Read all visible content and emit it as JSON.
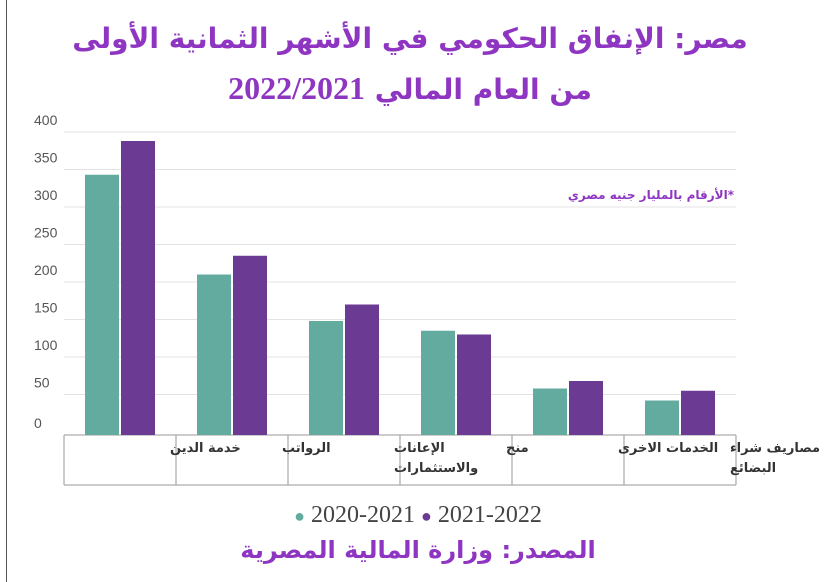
{
  "chart_data": {
    "type": "bar",
    "title_line1": "مصر: الإنفاق الحكومي في الأشهر الثمانية الأولى",
    "title_line2_text": "من العام المالي",
    "title_line2_year": "2022/2021",
    "note": "*الأرقام بالمليار جنيه مصري",
    "categories": [
      "خدمة الدين",
      "الرواتب",
      "الإعانات والاستثمارات",
      "منح",
      "الخدمات الاخرى",
      "مصاريف شراء البضائع"
    ],
    "category_lines": [
      [
        "خدمة الدين"
      ],
      [
        "الرواتب"
      ],
      [
        "الإعانات",
        "والاستثمارات"
      ],
      [
        "منح"
      ],
      [
        "الخدمات الاخرى"
      ],
      [
        "مصاريف شراء",
        "البضائع"
      ]
    ],
    "series": [
      {
        "name": "2020-2021",
        "color": "#64ab9f",
        "values": [
          343,
          210,
          148,
          135,
          58,
          42
        ]
      },
      {
        "name": "2021-2022",
        "color": "#6b3a93",
        "values": [
          388,
          235,
          170,
          130,
          68,
          55
        ]
      }
    ],
    "ylim": [
      0,
      400
    ],
    "yticks": [
      0,
      50,
      100,
      150,
      200,
      250,
      300,
      350,
      400
    ],
    "grid": true,
    "legend_position": "bottom",
    "source": "المصدر: وزارة المالية المصرية"
  }
}
